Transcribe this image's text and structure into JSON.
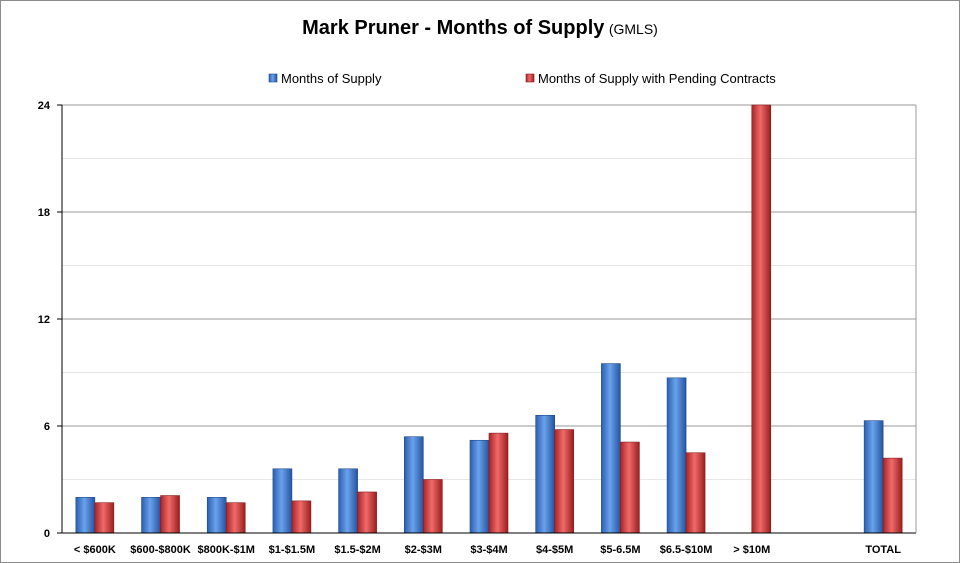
{
  "chart_data": {
    "type": "bar",
    "title": "Mark Pruner - Months of Supply",
    "subtitle": "(GMLS)",
    "xlabel": "",
    "ylabel": "",
    "ylim": [
      0,
      24
    ],
    "yticks": [
      0,
      6,
      12,
      18,
      24
    ],
    "minor_gridlines": [
      3,
      9,
      15,
      21
    ],
    "grid": true,
    "legend_position": "top",
    "categories": [
      "< $600K",
      "$600-$800K",
      "$800K-$1M",
      "$1-$1.5M",
      "$1.5-$2M",
      "$2-$3M",
      "$3-$4M",
      "$4-$5M",
      "$5-6.5M",
      "$6.5-$10M",
      "> $10M",
      "",
      "TOTAL"
    ],
    "series": [
      {
        "name": "Months of Supply",
        "color": "#3a7bd5",
        "values": [
          2.0,
          2.0,
          2.0,
          3.6,
          3.6,
          5.4,
          5.2,
          6.6,
          9.5,
          8.7,
          null,
          null,
          6.3
        ]
      },
      {
        "name": "Months of Supply with Pending Contracts",
        "color": "#d63a3a",
        "values": [
          1.7,
          2.1,
          1.7,
          1.8,
          2.3,
          3.0,
          5.6,
          5.8,
          5.1,
          4.5,
          24,
          null,
          4.2
        ]
      }
    ]
  }
}
